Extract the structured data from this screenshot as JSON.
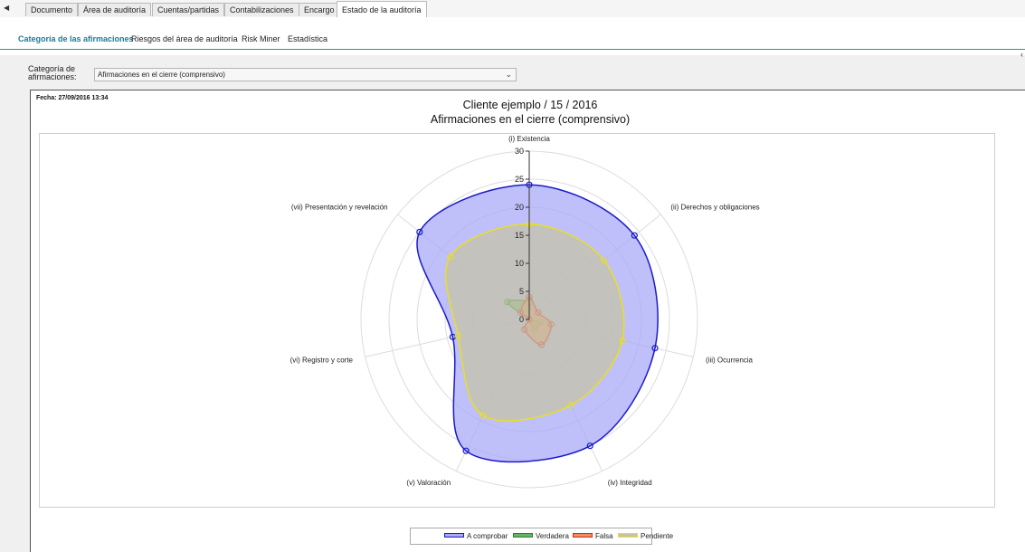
{
  "tabs": [
    {
      "label": "Documento",
      "active": false
    },
    {
      "label": "Área de auditoría",
      "active": false
    },
    {
      "label": "Cuentas/partidas",
      "active": false
    },
    {
      "label": "Contabilizaciones",
      "active": false
    },
    {
      "label": "Encargo",
      "active": false
    },
    {
      "label": "Estado de la auditoría",
      "active": true
    }
  ],
  "subtabs": [
    {
      "label": "Categoría de las afirmaciones",
      "active": true
    },
    {
      "label": "Riesgos del área de auditoría",
      "active": false
    },
    {
      "label": "Risk Miner",
      "active": false
    },
    {
      "label": "Estadística",
      "active": false
    }
  ],
  "filter": {
    "label": "Categoría de afirmaciones:",
    "value": "Afirmaciones en el cierre (comprensivo)"
  },
  "report": {
    "date": "Fecha: 27/09/2016 13:34",
    "title_line1": "Cliente ejemplo / 15 / 2016",
    "title_line2": "Afirmaciones en el cierre (comprensivo)"
  },
  "chart_data": {
    "type": "radar",
    "axes": [
      "(i) Existencia",
      "(ii) Derechos y obligaciones",
      "(iii) Ocurrencia",
      "(iv) Integridad",
      "(v) Valoración",
      "(vi) Registro y corte",
      "(vii) Presentación y revelación"
    ],
    "rlim": [
      0,
      30
    ],
    "ticks": [
      0,
      5,
      10,
      15,
      20,
      25,
      30
    ],
    "tick_labels": [
      "0",
      "5",
      "10",
      "15",
      "20",
      "25",
      "30"
    ],
    "grid": true,
    "legend_position": "bottom",
    "series": [
      {
        "name": "A comprobar",
        "color": "#1a1acc",
        "fill": "#aaaaf7",
        "values": [
          24,
          24,
          23,
          25,
          26,
          14,
          25
        ]
      },
      {
        "name": "Verdadera",
        "color": "#1f8a1f",
        "fill": "#6bb06b",
        "values": [
          3,
          0,
          2,
          2,
          0,
          0,
          5
        ]
      },
      {
        "name": "Falsa",
        "color": "#e02020",
        "fill": "#f09060",
        "values": [
          4,
          2,
          4,
          5,
          2,
          0,
          2
        ]
      },
      {
        "name": "Pendiente",
        "color": "#e8e020",
        "fill": "#c6c3a8",
        "values": [
          17,
          17,
          17,
          17,
          19,
          13,
          18
        ]
      }
    ]
  }
}
